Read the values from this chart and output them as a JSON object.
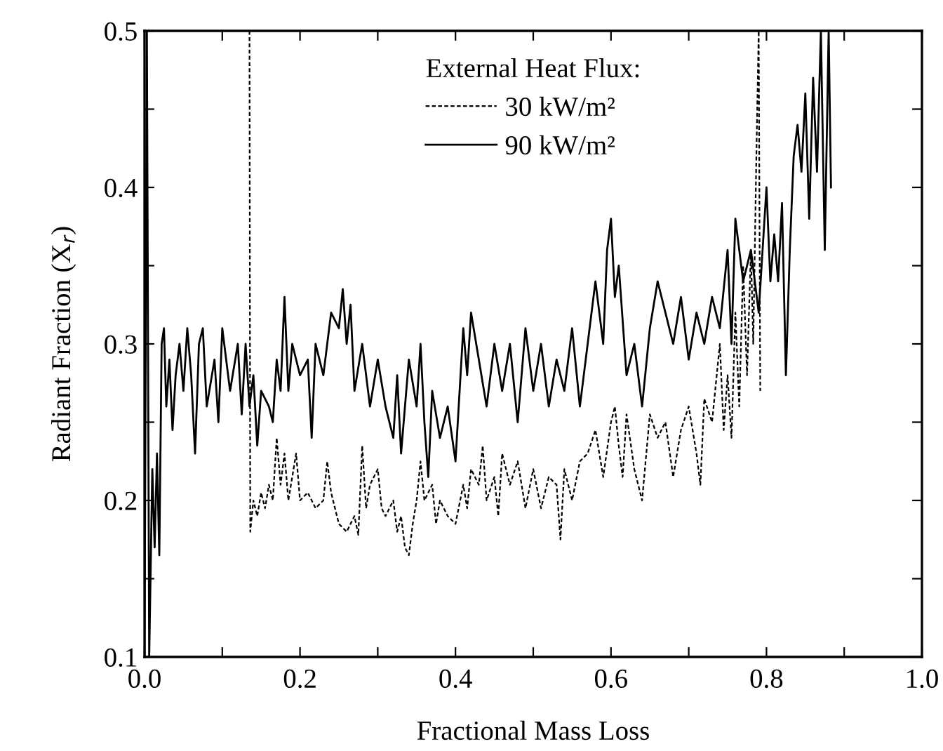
{
  "chart_data": {
    "type": "line",
    "xlabel": "Fractional Mass Loss",
    "ylabel": "Radiant Fraction (X$_{r}$)",
    "legend_title": "External Heat Flux:",
    "xlim": [
      0.0,
      1.0
    ],
    "ylim": [
      0.1,
      0.5
    ],
    "xticks": [
      {
        "value": 0.0,
        "label": "0.0"
      },
      {
        "value": 0.1,
        "label": null
      },
      {
        "value": 0.2,
        "label": "0.2"
      },
      {
        "value": 0.3,
        "label": null
      },
      {
        "value": 0.4,
        "label": "0.4"
      },
      {
        "value": 0.5,
        "label": null
      },
      {
        "value": 0.6,
        "label": "0.6"
      },
      {
        "value": 0.7,
        "label": null
      },
      {
        "value": 0.8,
        "label": "0.8"
      },
      {
        "value": 0.9,
        "label": null
      },
      {
        "value": 1.0,
        "label": "1.0"
      }
    ],
    "yticks": [
      {
        "value": 0.1,
        "label": "0.1"
      },
      {
        "value": 0.15,
        "label": null
      },
      {
        "value": 0.2,
        "label": "0.2"
      },
      {
        "value": 0.25,
        "label": null
      },
      {
        "value": 0.3,
        "label": "0.3"
      },
      {
        "value": 0.35,
        "label": null
      },
      {
        "value": 0.4,
        "label": "0.4"
      },
      {
        "value": 0.45,
        "label": null
      },
      {
        "value": 0.5,
        "label": "0.5"
      }
    ],
    "grid": false,
    "legend": "top",
    "marker": "none",
    "series": [
      {
        "name": "30 kW/m²",
        "color": "#000000",
        "line_style": "dashed",
        "x": [
          0.135,
          0.136,
          0.14,
          0.145,
          0.15,
          0.155,
          0.16,
          0.165,
          0.17,
          0.175,
          0.18,
          0.185,
          0.19,
          0.195,
          0.2,
          0.21,
          0.22,
          0.23,
          0.235,
          0.24,
          0.25,
          0.26,
          0.27,
          0.275,
          0.28,
          0.285,
          0.29,
          0.3,
          0.305,
          0.31,
          0.32,
          0.325,
          0.33,
          0.335,
          0.34,
          0.345,
          0.35,
          0.355,
          0.36,
          0.37,
          0.375,
          0.38,
          0.39,
          0.4,
          0.41,
          0.415,
          0.42,
          0.43,
          0.435,
          0.44,
          0.45,
          0.455,
          0.46,
          0.47,
          0.48,
          0.49,
          0.5,
          0.51,
          0.52,
          0.53,
          0.535,
          0.54,
          0.55,
          0.56,
          0.57,
          0.58,
          0.59,
          0.6,
          0.605,
          0.61,
          0.615,
          0.62,
          0.63,
          0.64,
          0.65,
          0.66,
          0.67,
          0.68,
          0.69,
          0.7,
          0.71,
          0.715,
          0.72,
          0.73,
          0.74,
          0.745,
          0.75,
          0.755,
          0.76,
          0.765,
          0.77,
          0.775,
          0.78,
          0.783,
          0.787,
          0.79,
          0.792
        ],
        "values": [
          0.5,
          0.18,
          0.2,
          0.19,
          0.205,
          0.195,
          0.21,
          0.2,
          0.24,
          0.21,
          0.23,
          0.2,
          0.215,
          0.23,
          0.2,
          0.205,
          0.195,
          0.2,
          0.225,
          0.205,
          0.185,
          0.18,
          0.19,
          0.178,
          0.235,
          0.195,
          0.21,
          0.22,
          0.195,
          0.19,
          0.2,
          0.18,
          0.19,
          0.17,
          0.165,
          0.185,
          0.2,
          0.225,
          0.2,
          0.21,
          0.185,
          0.2,
          0.19,
          0.185,
          0.21,
          0.195,
          0.22,
          0.21,
          0.235,
          0.2,
          0.215,
          0.19,
          0.23,
          0.21,
          0.225,
          0.195,
          0.22,
          0.195,
          0.215,
          0.21,
          0.175,
          0.22,
          0.2,
          0.225,
          0.23,
          0.245,
          0.215,
          0.25,
          0.26,
          0.235,
          0.215,
          0.255,
          0.22,
          0.2,
          0.255,
          0.24,
          0.25,
          0.215,
          0.245,
          0.26,
          0.23,
          0.21,
          0.265,
          0.25,
          0.3,
          0.245,
          0.28,
          0.24,
          0.32,
          0.26,
          0.35,
          0.28,
          0.36,
          0.3,
          0.42,
          0.5,
          0.27
        ]
      },
      {
        "name": "90 kW/m²",
        "color": "#000000",
        "line_style": "solid",
        "x": [
          0.0,
          0.003,
          0.006,
          0.01,
          0.013,
          0.016,
          0.019,
          0.022,
          0.025,
          0.028,
          0.032,
          0.036,
          0.04,
          0.045,
          0.05,
          0.055,
          0.06,
          0.065,
          0.07,
          0.075,
          0.08,
          0.09,
          0.095,
          0.1,
          0.11,
          0.12,
          0.125,
          0.13,
          0.135,
          0.14,
          0.145,
          0.15,
          0.16,
          0.165,
          0.17,
          0.175,
          0.18,
          0.185,
          0.19,
          0.2,
          0.21,
          0.215,
          0.22,
          0.23,
          0.24,
          0.25,
          0.255,
          0.26,
          0.265,
          0.27,
          0.28,
          0.29,
          0.3,
          0.31,
          0.32,
          0.325,
          0.33,
          0.34,
          0.35,
          0.355,
          0.36,
          0.365,
          0.37,
          0.38,
          0.39,
          0.4,
          0.41,
          0.415,
          0.42,
          0.43,
          0.44,
          0.45,
          0.46,
          0.47,
          0.48,
          0.49,
          0.5,
          0.51,
          0.52,
          0.53,
          0.54,
          0.55,
          0.56,
          0.57,
          0.58,
          0.59,
          0.595,
          0.6,
          0.605,
          0.61,
          0.62,
          0.63,
          0.64,
          0.65,
          0.66,
          0.67,
          0.68,
          0.69,
          0.7,
          0.71,
          0.72,
          0.73,
          0.74,
          0.75,
          0.755,
          0.76,
          0.77,
          0.78,
          0.79,
          0.8,
          0.805,
          0.81,
          0.815,
          0.82,
          0.825,
          0.83,
          0.835,
          0.84,
          0.845,
          0.85,
          0.855,
          0.86,
          0.865,
          0.87,
          0.875,
          0.88,
          0.883
        ],
        "values": [
          0.1,
          0.5,
          0.1,
          0.22,
          0.17,
          0.23,
          0.165,
          0.3,
          0.31,
          0.26,
          0.29,
          0.245,
          0.28,
          0.3,
          0.27,
          0.31,
          0.28,
          0.23,
          0.3,
          0.31,
          0.26,
          0.29,
          0.25,
          0.31,
          0.27,
          0.3,
          0.255,
          0.3,
          0.26,
          0.28,
          0.235,
          0.27,
          0.26,
          0.25,
          0.29,
          0.27,
          0.33,
          0.27,
          0.3,
          0.28,
          0.29,
          0.24,
          0.3,
          0.28,
          0.32,
          0.31,
          0.335,
          0.3,
          0.325,
          0.27,
          0.3,
          0.26,
          0.29,
          0.26,
          0.24,
          0.28,
          0.23,
          0.29,
          0.26,
          0.3,
          0.25,
          0.215,
          0.27,
          0.24,
          0.26,
          0.225,
          0.31,
          0.28,
          0.32,
          0.29,
          0.26,
          0.3,
          0.27,
          0.3,
          0.25,
          0.31,
          0.27,
          0.3,
          0.26,
          0.29,
          0.27,
          0.31,
          0.26,
          0.3,
          0.34,
          0.3,
          0.36,
          0.38,
          0.33,
          0.35,
          0.28,
          0.3,
          0.26,
          0.31,
          0.34,
          0.32,
          0.3,
          0.33,
          0.29,
          0.32,
          0.3,
          0.33,
          0.31,
          0.36,
          0.3,
          0.38,
          0.34,
          0.36,
          0.32,
          0.4,
          0.34,
          0.37,
          0.34,
          0.39,
          0.28,
          0.36,
          0.42,
          0.44,
          0.41,
          0.46,
          0.38,
          0.47,
          0.41,
          0.5,
          0.36,
          0.5,
          0.4
        ]
      }
    ]
  }
}
